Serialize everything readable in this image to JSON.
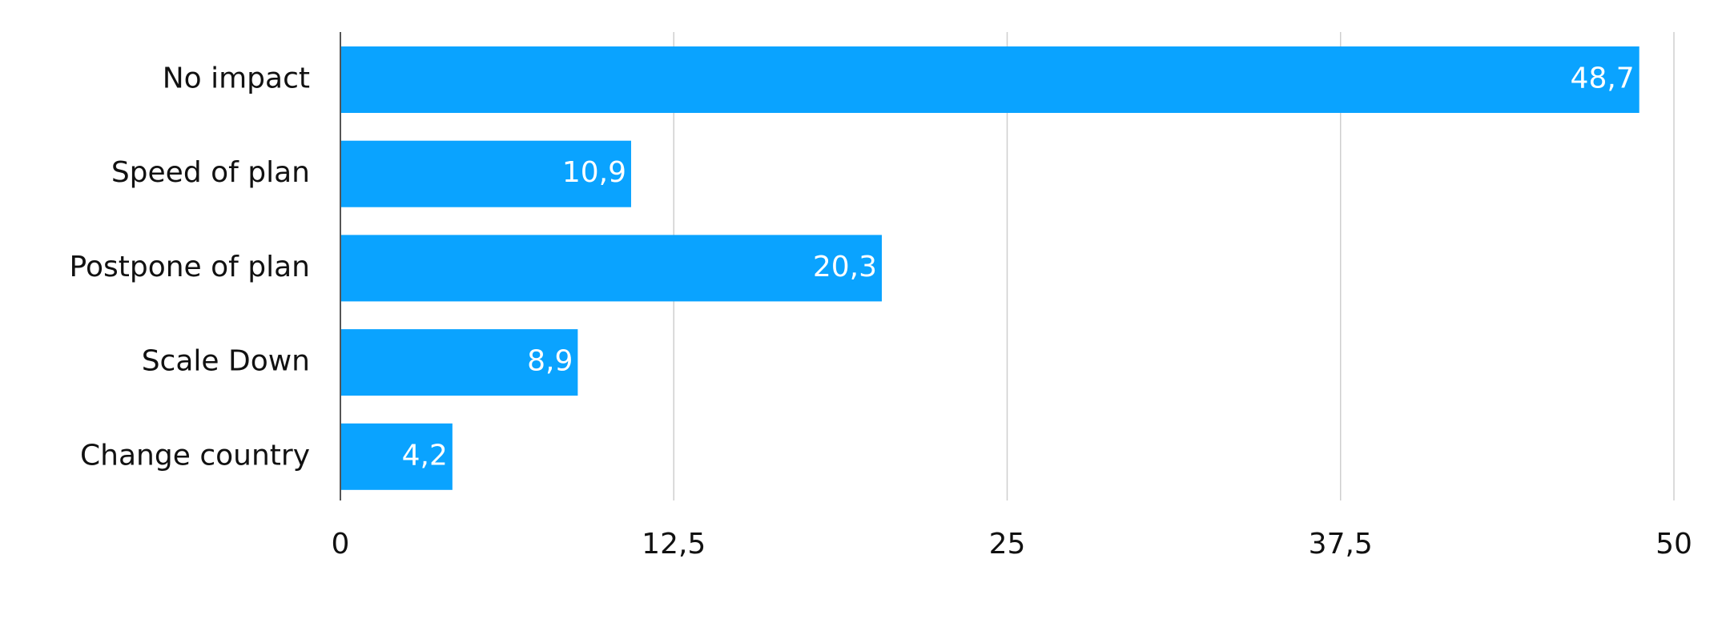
{
  "chart_data": {
    "type": "bar",
    "orientation": "horizontal",
    "categories": [
      "No impact",
      "Speed of plan",
      "Postpone of plan",
      "Scale Down",
      "Change country"
    ],
    "values": [
      48.7,
      10.9,
      20.3,
      8.9,
      4.2
    ],
    "value_labels": [
      "48,7",
      "10,9",
      "20,3",
      "8,9",
      "4,2"
    ],
    "color": "#0aa3ff",
    "xlim": [
      0,
      50
    ],
    "xticks": [
      0,
      {
        "value": 12.5,
        "label": "12,5"
      },
      25,
      {
        "value": 37.5,
        "label": "37,5"
      },
      50
    ],
    "grid": true
  }
}
